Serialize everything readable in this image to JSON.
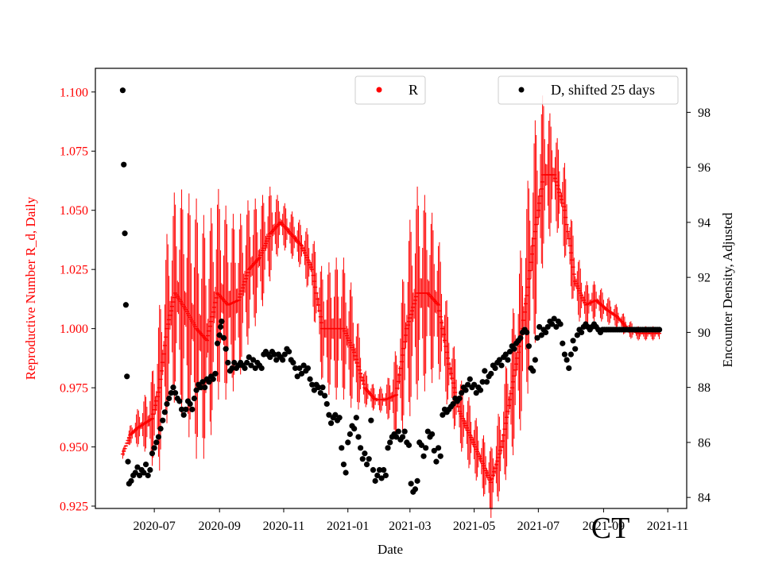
{
  "chart_data": {
    "type": "scatter",
    "watermark": "CT",
    "xlabel": "Date",
    "x_ticks": [
      "2020-07",
      "2020-09",
      "2020-11",
      "2021-01",
      "2021-03",
      "2021-05",
      "2021-07",
      "2021-09",
      "2021-11"
    ],
    "x_tick_days": [
      30,
      92,
      153,
      214,
      273,
      334,
      395,
      457,
      518
    ],
    "xlim_days": [
      -26,
      536
    ],
    "left_axis": {
      "label": "Reproductive Number R_d, Daily",
      "color": "#ff0000",
      "ylim": [
        0.924,
        1.11
      ],
      "ticks": [
        "0.925",
        "0.950",
        "0.975",
        "1.000",
        "1.025",
        "1.050",
        "1.075",
        "1.100"
      ],
      "tick_values": [
        0.925,
        0.95,
        0.975,
        1.0,
        1.025,
        1.05,
        1.075,
        1.1
      ]
    },
    "right_axis": {
      "label": "Encounter Density, Adjusted",
      "color": "#000000",
      "ylim": [
        83.6,
        99.6
      ],
      "ticks": [
        "84",
        "86",
        "88",
        "90",
        "92",
        "94",
        "96",
        "98"
      ],
      "tick_values": [
        84,
        86,
        88,
        90,
        92,
        94,
        96,
        98
      ]
    },
    "legend": [
      {
        "label": "R",
        "color": "#ff0000",
        "placement": "top-center"
      },
      {
        "label": "D, shifted 25 days",
        "color": "#000000",
        "placement": "top-right"
      }
    ],
    "series": [
      {
        "name": "R",
        "axis": "left",
        "color": "#ff0000",
        "x_days": [
          0,
          7,
          14,
          21,
          28,
          35,
          42,
          50,
          60,
          70,
          80,
          90,
          100,
          110,
          120,
          130,
          140,
          150,
          160,
          170,
          180,
          190,
          200,
          210,
          220,
          230,
          240,
          250,
          260,
          270,
          280,
          290,
          300,
          310,
          320,
          330,
          340,
          350,
          360,
          370,
          380,
          390,
          400,
          410,
          420,
          430,
          440,
          450,
          460,
          470,
          480,
          490,
          500,
          510
        ],
        "mean": [
          0.947,
          0.955,
          0.958,
          0.96,
          0.962,
          0.975,
          1.0,
          1.015,
          1.008,
          1.0,
          0.995,
          1.015,
          1.01,
          1.012,
          1.025,
          1.03,
          1.04,
          1.045,
          1.04,
          1.035,
          1.025,
          1.0,
          1.0,
          1.0,
          0.99,
          0.975,
          0.97,
          0.97,
          0.972,
          1.0,
          1.015,
          1.015,
          1.01,
          0.985,
          0.965,
          0.955,
          0.945,
          0.935,
          0.95,
          0.975,
          1.0,
          1.035,
          1.065,
          1.065,
          1.05,
          1.02,
          1.01,
          1.012,
          1.008,
          1.005,
          1.0,
          0.998,
          0.998,
          0.998
        ],
        "spread": [
          0.002,
          0.004,
          0.008,
          0.012,
          0.02,
          0.035,
          0.04,
          0.045,
          0.05,
          0.055,
          0.05,
          0.045,
          0.04,
          0.035,
          0.03,
          0.025,
          0.02,
          0.01,
          0.01,
          0.01,
          0.015,
          0.025,
          0.03,
          0.03,
          0.025,
          0.008,
          0.005,
          0.006,
          0.02,
          0.04,
          0.045,
          0.04,
          0.03,
          0.02,
          0.015,
          0.015,
          0.012,
          0.015,
          0.02,
          0.03,
          0.04,
          0.05,
          0.035,
          0.02,
          0.02,
          0.015,
          0.01,
          0.008,
          0.006,
          0.005,
          0.004,
          0.003,
          0.003,
          0.003
        ]
      },
      {
        "name": "D, shifted 25 days",
        "axis": "right",
        "color": "#000000",
        "points": [
          [
            0,
            98.8
          ],
          [
            1,
            96.1
          ],
          [
            2,
            93.6
          ],
          [
            3,
            91.0
          ],
          [
            4,
            88.4
          ],
          [
            5,
            85.3
          ],
          [
            6,
            84.5
          ],
          [
            8,
            84.6
          ],
          [
            10,
            84.8
          ],
          [
            12,
            84.9
          ],
          [
            14,
            85.1
          ],
          [
            16,
            84.8
          ],
          [
            18,
            85.0
          ],
          [
            20,
            84.9
          ],
          [
            22,
            85.2
          ],
          [
            24,
            84.8
          ],
          [
            26,
            85.0
          ],
          [
            28,
            85.6
          ],
          [
            30,
            85.8
          ],
          [
            32,
            86.0
          ],
          [
            34,
            86.2
          ],
          [
            36,
            86.5
          ],
          [
            38,
            86.8
          ],
          [
            40,
            87.1
          ],
          [
            42,
            87.4
          ],
          [
            44,
            87.6
          ],
          [
            46,
            87.8
          ],
          [
            48,
            88.0
          ],
          [
            50,
            87.8
          ],
          [
            52,
            87.6
          ],
          [
            54,
            87.5
          ],
          [
            56,
            87.2
          ],
          [
            58,
            87.0
          ],
          [
            60,
            87.2
          ],
          [
            62,
            87.5
          ],
          [
            64,
            87.4
          ],
          [
            66,
            87.2
          ],
          [
            68,
            87.6
          ],
          [
            70,
            87.9
          ],
          [
            72,
            88.1
          ],
          [
            74,
            88.0
          ],
          [
            76,
            88.2
          ],
          [
            78,
            88.0
          ],
          [
            80,
            88.3
          ],
          [
            82,
            88.2
          ],
          [
            84,
            88.4
          ],
          [
            86,
            88.3
          ],
          [
            88,
            88.5
          ],
          [
            90,
            89.6
          ],
          [
            92,
            89.9
          ],
          [
            93,
            90.2
          ],
          [
            94,
            90.4
          ],
          [
            96,
            89.8
          ],
          [
            98,
            89.4
          ],
          [
            100,
            88.9
          ],
          [
            102,
            88.6
          ],
          [
            104,
            88.7
          ],
          [
            106,
            88.9
          ],
          [
            108,
            88.7
          ],
          [
            110,
            88.8
          ],
          [
            112,
            88.9
          ],
          [
            114,
            88.8
          ],
          [
            116,
            88.7
          ],
          [
            118,
            88.9
          ],
          [
            120,
            89.1
          ],
          [
            122,
            88.8
          ],
          [
            124,
            89.0
          ],
          [
            126,
            88.7
          ],
          [
            128,
            88.9
          ],
          [
            130,
            88.8
          ],
          [
            132,
            88.7
          ],
          [
            134,
            89.2
          ],
          [
            136,
            89.3
          ],
          [
            138,
            89.2
          ],
          [
            140,
            89.1
          ],
          [
            142,
            89.3
          ],
          [
            144,
            89.2
          ],
          [
            146,
            89.0
          ],
          [
            148,
            89.2
          ],
          [
            150,
            89.1
          ],
          [
            152,
            89.0
          ],
          [
            154,
            89.2
          ],
          [
            156,
            89.4
          ],
          [
            158,
            89.3
          ],
          [
            160,
            89.0
          ],
          [
            162,
            88.9
          ],
          [
            164,
            88.7
          ],
          [
            166,
            88.4
          ],
          [
            168,
            88.7
          ],
          [
            170,
            88.5
          ],
          [
            172,
            88.8
          ],
          [
            174,
            88.6
          ],
          [
            176,
            88.7
          ],
          [
            178,
            88.3
          ],
          [
            180,
            88.1
          ],
          [
            182,
            87.9
          ],
          [
            184,
            88.1
          ],
          [
            186,
            88.0
          ],
          [
            188,
            87.8
          ],
          [
            190,
            88.0
          ],
          [
            192,
            87.7
          ],
          [
            194,
            87.4
          ],
          [
            196,
            87.0
          ],
          [
            198,
            86.7
          ],
          [
            200,
            86.9
          ],
          [
            202,
            87.0
          ],
          [
            204,
            86.8
          ],
          [
            206,
            86.9
          ],
          [
            208,
            85.8
          ],
          [
            210,
            85.2
          ],
          [
            212,
            84.9
          ],
          [
            214,
            86.0
          ],
          [
            216,
            86.3
          ],
          [
            218,
            86.6
          ],
          [
            220,
            86.5
          ],
          [
            222,
            86.9
          ],
          [
            224,
            86.2
          ],
          [
            226,
            85.8
          ],
          [
            228,
            85.4
          ],
          [
            230,
            85.6
          ],
          [
            232,
            85.2
          ],
          [
            234,
            85.4
          ],
          [
            236,
            86.8
          ],
          [
            238,
            85.0
          ],
          [
            240,
            84.6
          ],
          [
            242,
            84.8
          ],
          [
            244,
            85.0
          ],
          [
            246,
            84.7
          ],
          [
            248,
            85.0
          ],
          [
            250,
            84.8
          ],
          [
            252,
            85.8
          ],
          [
            254,
            86.0
          ],
          [
            256,
            86.2
          ],
          [
            258,
            86.3
          ],
          [
            260,
            86.2
          ],
          [
            262,
            86.4
          ],
          [
            264,
            86.1
          ],
          [
            266,
            86.2
          ],
          [
            268,
            86.4
          ],
          [
            270,
            86.0
          ],
          [
            272,
            85.9
          ],
          [
            274,
            84.5
          ],
          [
            276,
            84.2
          ],
          [
            278,
            84.3
          ],
          [
            280,
            84.6
          ],
          [
            282,
            86.0
          ],
          [
            284,
            85.9
          ],
          [
            286,
            85.5
          ],
          [
            288,
            85.8
          ],
          [
            290,
            86.4
          ],
          [
            292,
            86.2
          ],
          [
            294,
            86.3
          ],
          [
            296,
            85.7
          ],
          [
            298,
            85.3
          ],
          [
            300,
            85.8
          ],
          [
            302,
            85.5
          ],
          [
            304,
            87.0
          ],
          [
            306,
            87.2
          ],
          [
            308,
            87.1
          ],
          [
            310,
            87.2
          ],
          [
            312,
            87.3
          ],
          [
            314,
            87.4
          ],
          [
            316,
            87.6
          ],
          [
            318,
            87.5
          ],
          [
            320,
            87.6
          ],
          [
            322,
            87.8
          ],
          [
            324,
            88.0
          ],
          [
            326,
            87.9
          ],
          [
            328,
            88.1
          ],
          [
            330,
            88.3
          ],
          [
            332,
            88.0
          ],
          [
            334,
            88.1
          ],
          [
            336,
            87.8
          ],
          [
            338,
            88.0
          ],
          [
            340,
            87.9
          ],
          [
            342,
            88.2
          ],
          [
            344,
            88.6
          ],
          [
            346,
            88.2
          ],
          [
            348,
            88.4
          ],
          [
            350,
            88.5
          ],
          [
            352,
            88.8
          ],
          [
            354,
            88.7
          ],
          [
            356,
            88.9
          ],
          [
            358,
            89.0
          ],
          [
            360,
            88.8
          ],
          [
            362,
            89.1
          ],
          [
            364,
            89.2
          ],
          [
            366,
            89.0
          ],
          [
            368,
            89.3
          ],
          [
            370,
            89.5
          ],
          [
            372,
            89.4
          ],
          [
            374,
            89.6
          ],
          [
            376,
            89.7
          ],
          [
            378,
            89.8
          ],
          [
            380,
            90.0
          ],
          [
            382,
            90.1
          ],
          [
            384,
            90.0
          ],
          [
            386,
            89.5
          ],
          [
            388,
            88.7
          ],
          [
            390,
            88.6
          ],
          [
            392,
            89.0
          ],
          [
            394,
            89.8
          ],
          [
            396,
            90.2
          ],
          [
            398,
            89.9
          ],
          [
            400,
            90.1
          ],
          [
            402,
            90.0
          ],
          [
            404,
            90.2
          ],
          [
            406,
            90.4
          ],
          [
            408,
            90.3
          ],
          [
            410,
            90.5
          ],
          [
            412,
            90.2
          ],
          [
            414,
            90.4
          ],
          [
            416,
            90.3
          ],
          [
            418,
            89.6
          ],
          [
            420,
            89.2
          ],
          [
            422,
            89.0
          ],
          [
            424,
            88.7
          ],
          [
            426,
            89.2
          ],
          [
            428,
            89.7
          ],
          [
            430,
            89.4
          ],
          [
            432,
            89.9
          ],
          [
            434,
            90.1
          ],
          [
            436,
            90.0
          ],
          [
            438,
            90.2
          ],
          [
            440,
            90.3
          ],
          [
            442,
            90.2
          ],
          [
            444,
            90.1
          ],
          [
            446,
            90.2
          ],
          [
            448,
            90.3
          ],
          [
            450,
            90.2
          ],
          [
            452,
            90.1
          ],
          [
            454,
            90.0
          ],
          [
            456,
            90.1
          ],
          [
            458,
            90.1
          ],
          [
            460,
            90.1
          ],
          [
            462,
            90.1
          ],
          [
            464,
            90.1
          ],
          [
            466,
            90.1
          ],
          [
            468,
            90.1
          ],
          [
            470,
            90.1
          ],
          [
            472,
            90.1
          ],
          [
            474,
            90.1
          ],
          [
            476,
            90.1
          ],
          [
            478,
            90.1
          ],
          [
            480,
            90.1
          ],
          [
            482,
            90.1
          ],
          [
            484,
            90.1
          ],
          [
            486,
            90.1
          ],
          [
            488,
            90.1
          ],
          [
            490,
            90.1
          ],
          [
            492,
            90.1
          ],
          [
            494,
            90.1
          ],
          [
            496,
            90.1
          ],
          [
            498,
            90.1
          ],
          [
            500,
            90.1
          ],
          [
            502,
            90.1
          ],
          [
            504,
            90.1
          ],
          [
            506,
            90.1
          ],
          [
            508,
            90.1
          ],
          [
            510,
            90.1
          ]
        ]
      }
    ]
  }
}
